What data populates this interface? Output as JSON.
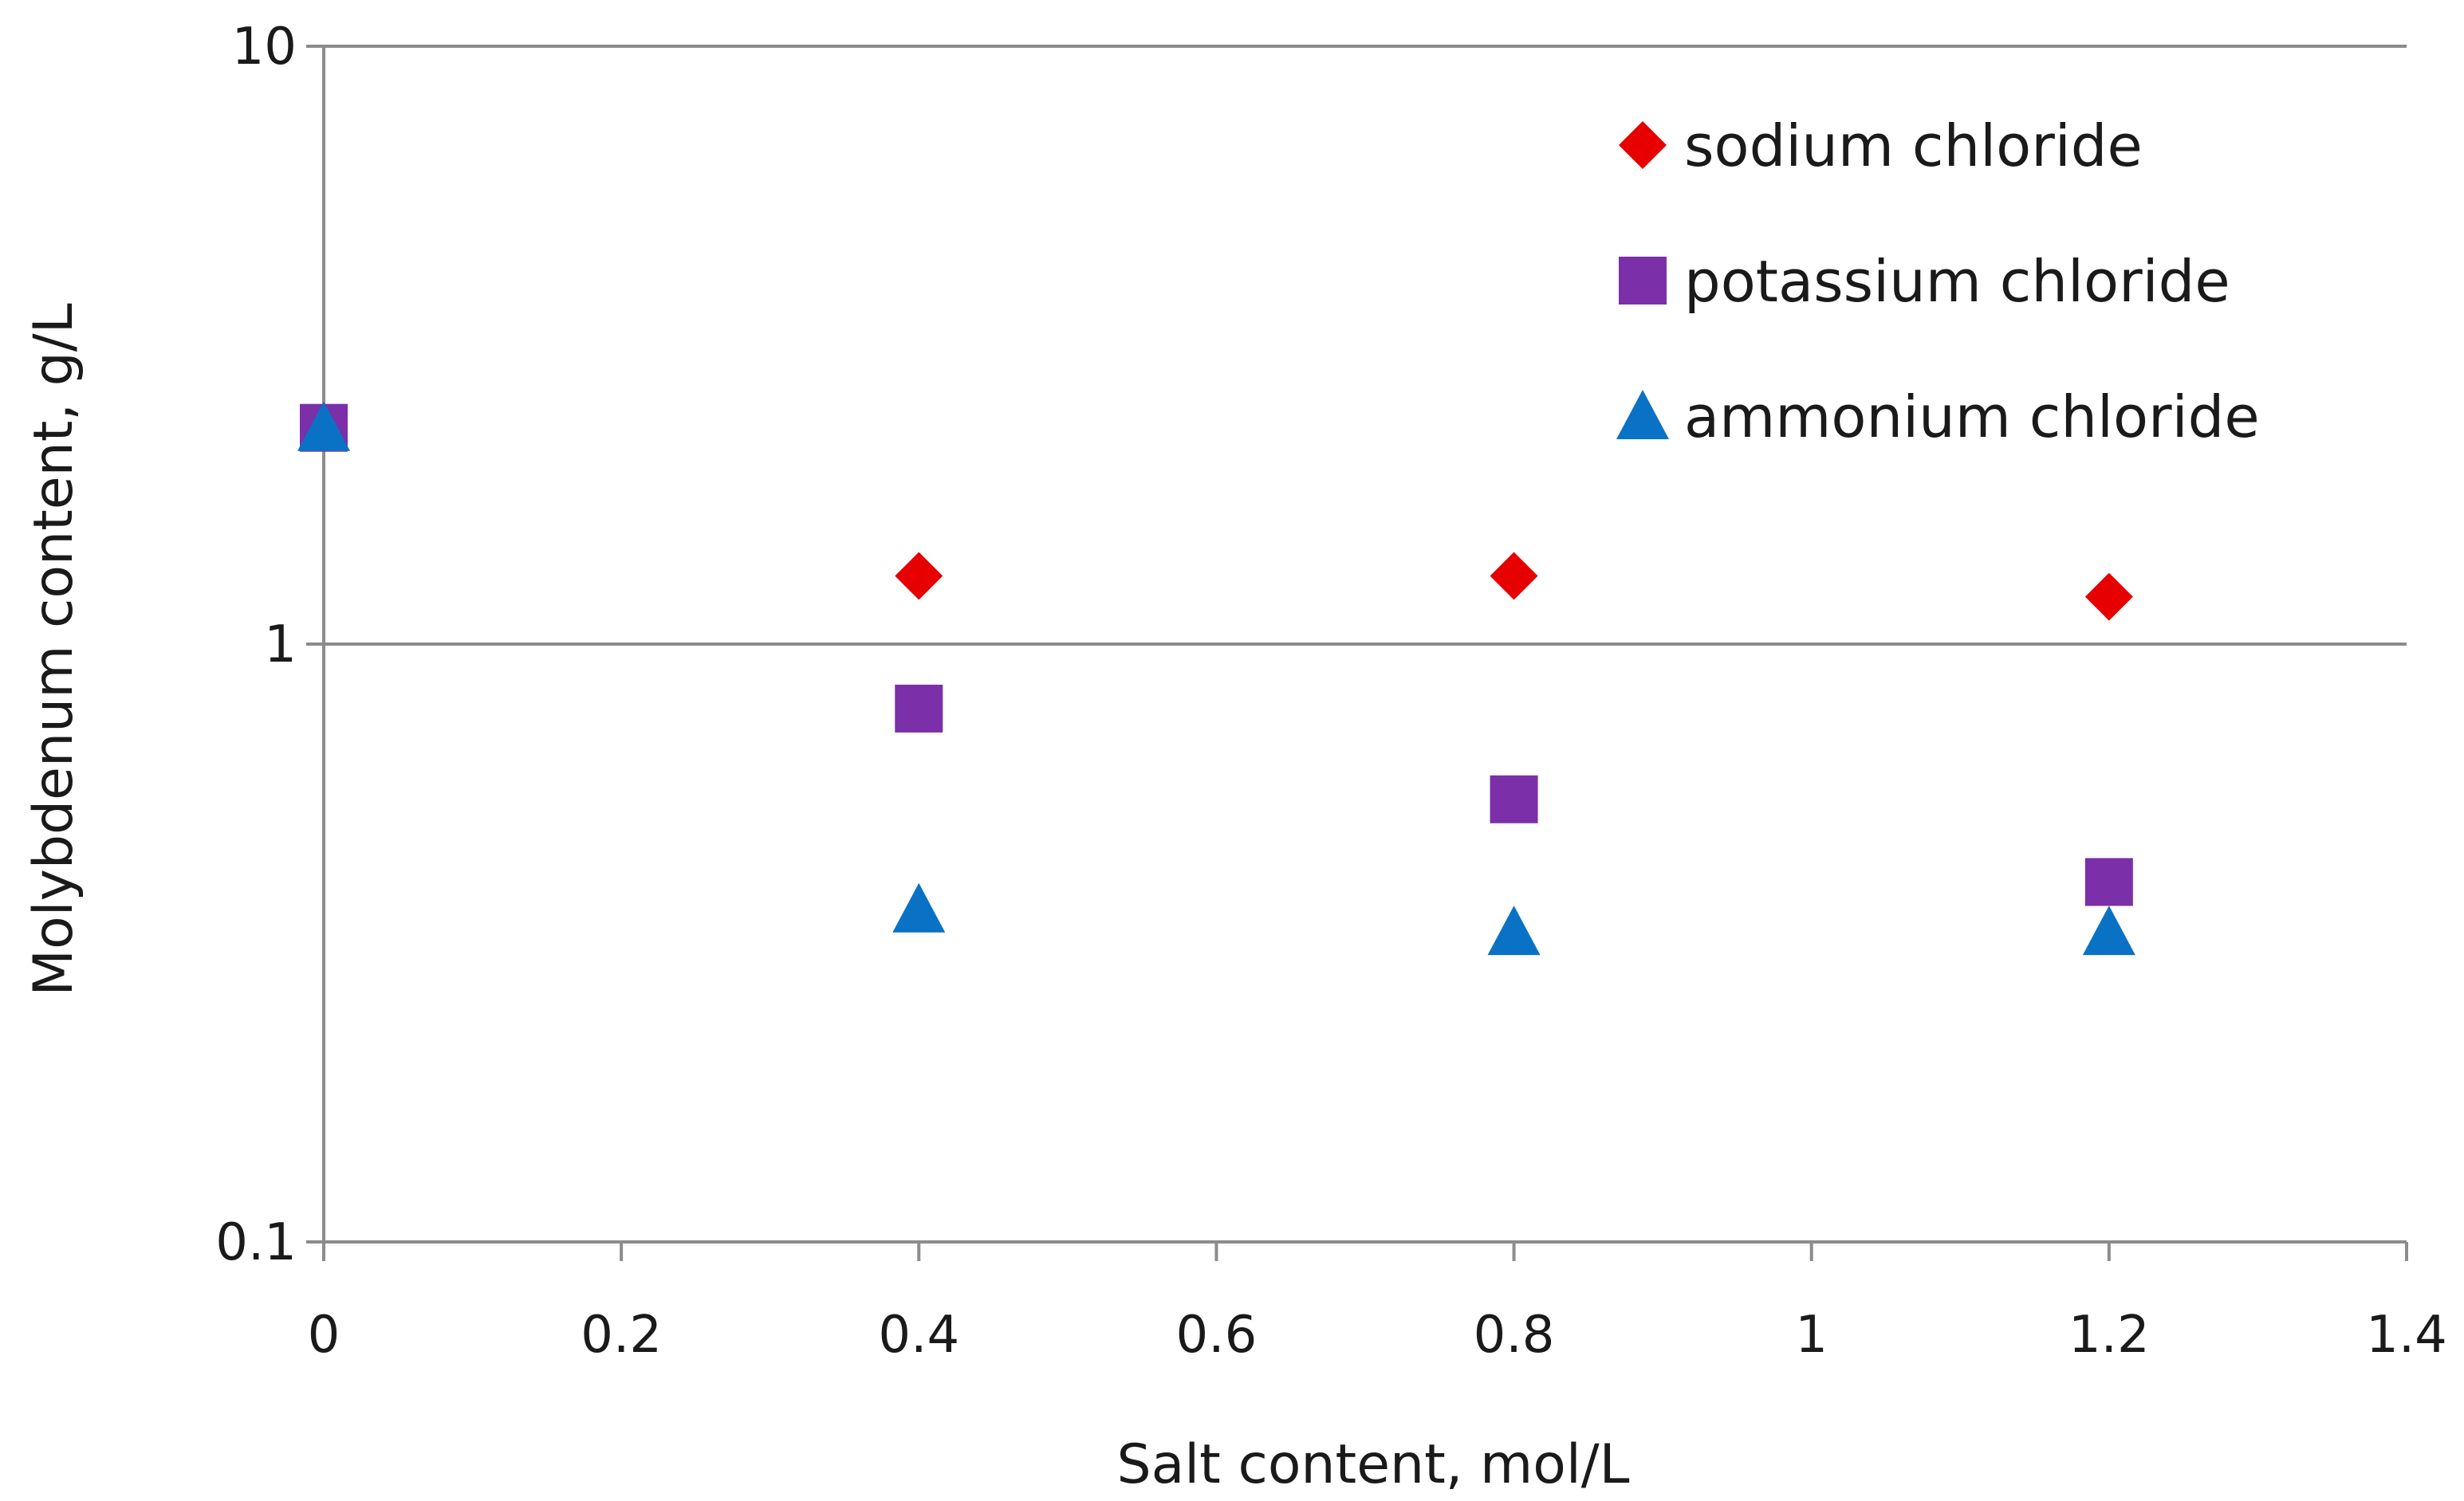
{
  "chart_data": {
    "type": "scatter",
    "title": "",
    "xlabel": "Salt content, mol/L",
    "ylabel": "Molybdenum content, g/L",
    "xlim": [
      0,
      1.4
    ],
    "ylim": [
      0.1,
      10
    ],
    "y_scale": "log",
    "x_ticks": [
      "0",
      "0.2",
      "0.4",
      "0.6",
      "0.8",
      "1",
      "1.2",
      "1.4"
    ],
    "y_ticks": [
      "0.1",
      "1",
      "10"
    ],
    "grid": {
      "horizontal_major": true,
      "vertical": false
    },
    "legend_position": "top-right",
    "series": [
      {
        "name": "sodium chloride",
        "marker": "diamond",
        "color": "#e60000",
        "x": [
          0,
          0.4,
          0.8,
          1.2
        ],
        "y": [
          2.3,
          1.3,
          1.3,
          1.2
        ]
      },
      {
        "name": "potassium chloride",
        "marker": "square",
        "color": "#7b2fa8",
        "x": [
          0,
          0.4,
          0.8,
          1.2
        ],
        "y": [
          2.3,
          0.78,
          0.55,
          0.4
        ]
      },
      {
        "name": "ammonium chloride",
        "marker": "triangle",
        "color": "#0a72c4",
        "x": [
          0,
          0.4,
          0.8,
          1.2
        ],
        "y": [
          2.3,
          0.36,
          0.33,
          0.33
        ]
      }
    ]
  }
}
